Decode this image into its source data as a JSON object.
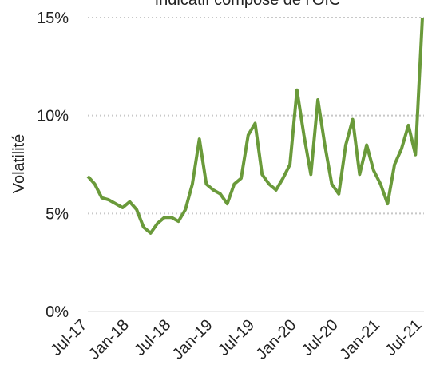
{
  "chart_data": {
    "type": "line",
    "title": "Indicatif composé de l'OIC",
    "ylabel": "Volatilité",
    "x": [
      "2017-07",
      "2017-08",
      "2017-09",
      "2017-10",
      "2017-11",
      "2017-12",
      "2018-01",
      "2018-02",
      "2018-03",
      "2018-04",
      "2018-05",
      "2018-06",
      "2018-07",
      "2018-08",
      "2018-09",
      "2018-10",
      "2018-11",
      "2018-12",
      "2019-01",
      "2019-02",
      "2019-03",
      "2019-04",
      "2019-05",
      "2019-06",
      "2019-07",
      "2019-08",
      "2019-09",
      "2019-10",
      "2019-11",
      "2019-12",
      "2020-01",
      "2020-02",
      "2020-03",
      "2020-04",
      "2020-05",
      "2020-06",
      "2020-07",
      "2020-08",
      "2020-09",
      "2020-10",
      "2020-11",
      "2020-12",
      "2021-01",
      "2021-02",
      "2021-03",
      "2021-04",
      "2021-05",
      "2021-06",
      "2021-07"
    ],
    "series": [
      {
        "name": "Indicatif composé de l'OIC",
        "color": "#6a9a3a",
        "values": [
          6.9,
          6.5,
          5.8,
          5.7,
          5.5,
          5.3,
          5.6,
          5.2,
          4.3,
          4.0,
          4.5,
          4.8,
          4.8,
          4.6,
          5.2,
          6.5,
          8.8,
          6.5,
          6.2,
          6.0,
          5.5,
          6.5,
          6.8,
          9.0,
          9.6,
          7.0,
          6.5,
          6.2,
          6.8,
          7.5,
          11.3,
          9.0,
          7.0,
          10.8,
          8.5,
          6.5,
          6.0,
          8.5,
          9.8,
          7.0,
          8.5,
          7.2,
          6.5,
          5.5,
          7.5,
          8.3,
          9.5,
          8.0,
          15.0
        ]
      }
    ],
    "xlim": [
      "2017-07",
      "2021-07"
    ],
    "xticks": [
      {
        "value": "2017-07",
        "label": "Jul-17"
      },
      {
        "value": "2018-01",
        "label": "Jan-18"
      },
      {
        "value": "2018-07",
        "label": "Jul-18"
      },
      {
        "value": "2019-01",
        "label": "Jan-19"
      },
      {
        "value": "2019-07",
        "label": "Jul-19"
      },
      {
        "value": "2020-01",
        "label": "Jan-20"
      },
      {
        "value": "2020-07",
        "label": "Jul-20"
      },
      {
        "value": "2021-01",
        "label": "Jan-21"
      },
      {
        "value": "2021-07",
        "label": "Jul-21"
      }
    ],
    "ylim": [
      0,
      15
    ],
    "yticks": [
      {
        "value": 0,
        "label": "0%"
      },
      {
        "value": 5,
        "label": "5%"
      },
      {
        "value": 10,
        "label": "10%"
      },
      {
        "value": 15,
        "label": "15%"
      }
    ],
    "grid": true
  }
}
